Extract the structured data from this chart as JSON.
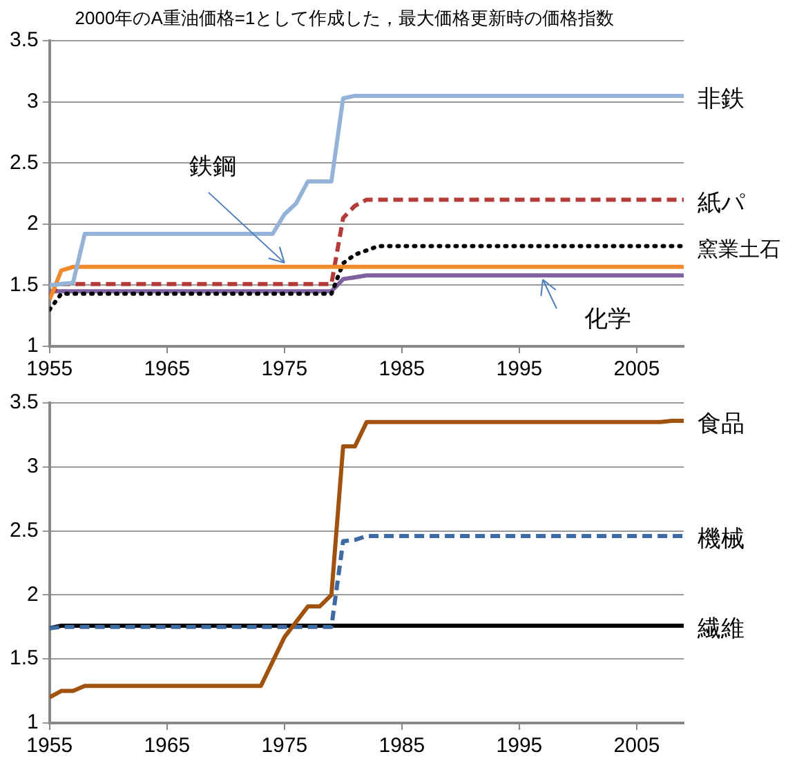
{
  "chart_data": [
    {
      "type": "line",
      "title": "2000年のA重油価格=1として作成した，最大価格更新時の価格指数",
      "xlim": [
        1955,
        2009
      ],
      "xticks": [
        1955,
        1965,
        1975,
        1985,
        1995,
        2005
      ],
      "ylim": [
        1,
        3.5
      ],
      "yticks": [
        1,
        1.5,
        2,
        2.5,
        3,
        3.5
      ],
      "grid": "y",
      "marker": "none",
      "series": [
        {
          "name": "非鉄",
          "color": "#95b3d7",
          "line_style": "solid",
          "x": [
            1955,
            1957,
            1958,
            1974,
            1975,
            1976,
            1977,
            1979,
            1980,
            1981,
            2009
          ],
          "values": [
            1.5,
            1.52,
            1.92,
            1.92,
            2.08,
            2.17,
            2.35,
            2.35,
            3.03,
            3.05,
            3.05
          ]
        },
        {
          "color": "#f08a2c",
          "line_style": "solid",
          "x": [
            1955,
            1956,
            1957,
            2009
          ],
          "values": [
            1.38,
            1.62,
            1.65,
            1.65
          ]
        },
        {
          "name": "紙パ",
          "color": "#b33c3a",
          "line_style": "dashed",
          "x": [
            1955,
            1956,
            1979,
            1980,
            1981,
            1982,
            2009
          ],
          "values": [
            1.42,
            1.51,
            1.51,
            2.05,
            2.15,
            2.2,
            2.2
          ]
        },
        {
          "name": "窯業土石",
          "color": "#000000",
          "line_style": "dotted",
          "x": [
            1955,
            1956,
            1979,
            1980,
            1981,
            1983,
            2009
          ],
          "values": [
            1.3,
            1.43,
            1.43,
            1.68,
            1.75,
            1.82,
            1.82
          ]
        },
        {
          "color": "#7f60a0",
          "line_style": "solid",
          "x": [
            1955,
            1979,
            1980,
            1982,
            2009
          ],
          "values": [
            1.45,
            1.45,
            1.55,
            1.58,
            1.58
          ]
        }
      ],
      "annotations": [
        {
          "text": "鉄鋼",
          "x": 1975,
          "y": 1.65
        },
        {
          "text": "化学",
          "x": 1997,
          "y": 1.58
        }
      ]
    },
    {
      "type": "line",
      "xlim": [
        1955,
        2009
      ],
      "xticks": [
        1955,
        1965,
        1975,
        1985,
        1995,
        2005
      ],
      "ylim": [
        1,
        3.5
      ],
      "yticks": [
        1,
        1.5,
        2,
        2.5,
        3,
        3.5
      ],
      "grid": "y",
      "marker": "none",
      "series": [
        {
          "name": "食品",
          "color": "#a0520f",
          "line_style": "solid",
          "x": [
            1955,
            1956,
            1957,
            1958,
            1973,
            1975,
            1977,
            1978,
            1979,
            1980,
            1981,
            1982,
            2007,
            2008,
            2009
          ],
          "values": [
            1.2,
            1.25,
            1.25,
            1.29,
            1.29,
            1.67,
            1.91,
            1.91,
            2.0,
            3.16,
            3.16,
            3.35,
            3.35,
            3.36,
            3.36
          ]
        },
        {
          "name": "機械",
          "color": "#3e6aa3",
          "line_style": "dashed",
          "x": [
            1955,
            1956,
            1979,
            1980,
            1981,
            1982,
            2009
          ],
          "values": [
            1.74,
            1.75,
            1.75,
            2.42,
            2.43,
            2.46,
            2.46
          ]
        },
        {
          "name": "繊維",
          "color": "#000000",
          "line_style": "solid",
          "x": [
            1955,
            1956,
            2009
          ],
          "values": [
            1.74,
            1.76,
            1.76
          ]
        }
      ]
    }
  ]
}
